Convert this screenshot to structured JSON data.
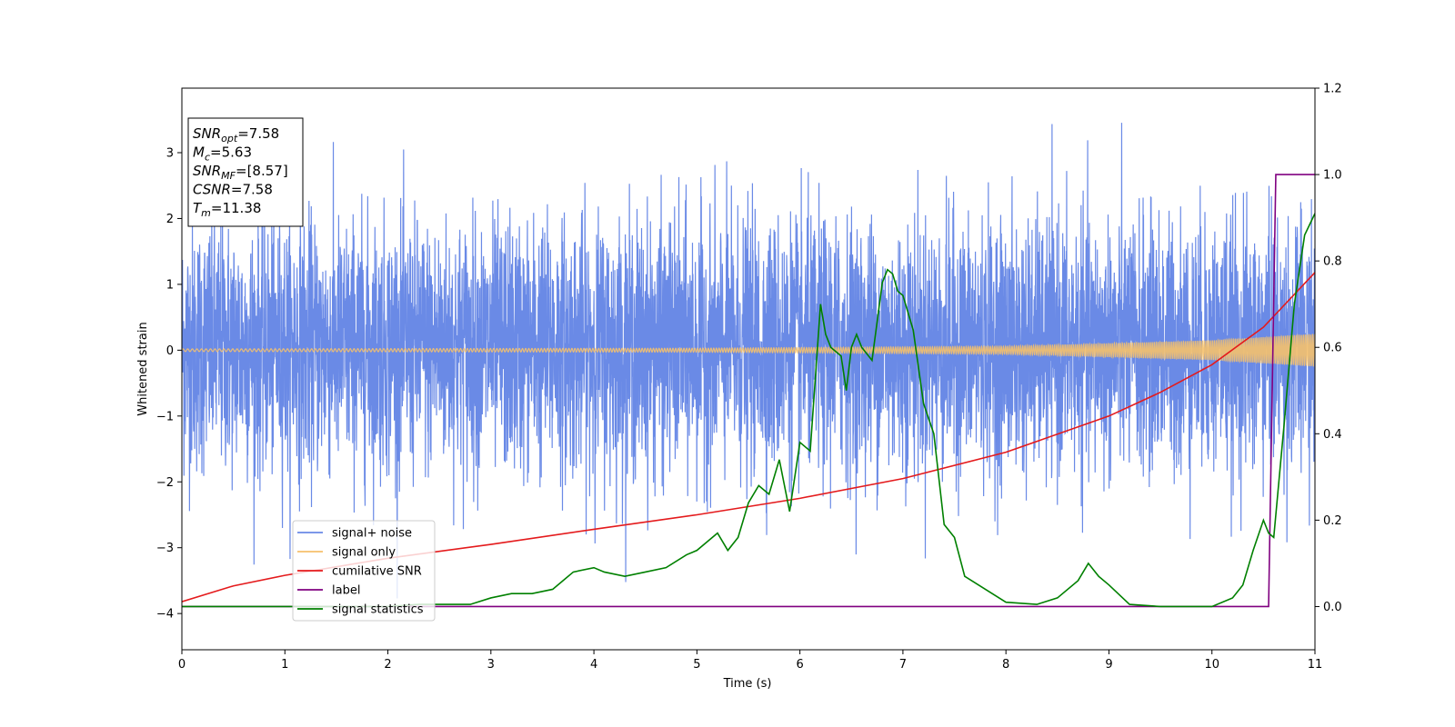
{
  "chart_data": {
    "type": "line",
    "xlabel": "Time (s)",
    "ylabel": "Whitened strain",
    "xlim": [
      0,
      11
    ],
    "ylim": [
      -4.55,
      3.98
    ],
    "y2lim": [
      -0.1,
      1.2
    ],
    "xticks": [
      0,
      1,
      2,
      3,
      4,
      5,
      6,
      7,
      8,
      9,
      10,
      11
    ],
    "yticks": [
      -4,
      -3,
      -2,
      -1,
      0,
      1,
      2,
      3
    ],
    "y2ticks": [
      0.0,
      0.2,
      0.4,
      0.6,
      0.8,
      1.0,
      1.2
    ],
    "grid": false,
    "legend_position": "lower-left",
    "annotation": {
      "lines": [
        {
          "var": "SNR",
          "sub": "opt",
          "value": "=7.58"
        },
        {
          "var": "M",
          "sub": "c",
          "value": "=5.63"
        },
        {
          "var": "SNR",
          "sub": "MF",
          "value": "=[8.57]"
        },
        {
          "var": "CSNR",
          "sub": "",
          "value": "=7.58"
        },
        {
          "var": "T",
          "sub": "m",
          "value": "=11.38"
        }
      ]
    },
    "series": [
      {
        "name": "signal+ noise",
        "color": "#6a8ae6",
        "axis": "left",
        "style": "noise",
        "envelope": {
          "x": [
            0,
            11
          ],
          "typical_range": [
            -1.5,
            2.0
          ],
          "peaks_max": 3.6,
          "peaks_min": -4.15
        }
      },
      {
        "name": "signal only",
        "color": "#f6c16b",
        "axis": "left",
        "style": "chirp",
        "amplitude": {
          "x": [
            0,
            5,
            8,
            10,
            11
          ],
          "y": [
            0.02,
            0.03,
            0.06,
            0.15,
            0.25
          ]
        }
      },
      {
        "name": "cumilative SNR",
        "color": "#e41a1c",
        "axis": "left",
        "x": [
          0.0,
          0.5,
          1.0,
          2.0,
          3.0,
          4.0,
          5.0,
          6.0,
          7.0,
          8.0,
          9.0,
          9.5,
          10.0,
          10.5,
          11.0
        ],
        "y": [
          -3.82,
          -3.58,
          -3.42,
          -3.16,
          -2.95,
          -2.72,
          -2.5,
          -2.25,
          -1.95,
          -1.55,
          -1.0,
          -0.64,
          -0.22,
          0.35,
          1.18
        ]
      },
      {
        "name": "label",
        "color": "#800080",
        "axis": "right",
        "x": [
          0,
          10.55,
          10.62,
          11.0
        ],
        "y": [
          0,
          0,
          1,
          1
        ]
      },
      {
        "name": "signal statistics",
        "color": "#008000",
        "axis": "right",
        "x": [
          0,
          0.5,
          1.0,
          1.5,
          2.0,
          2.3,
          2.5,
          2.8,
          3.0,
          3.2,
          3.4,
          3.6,
          3.8,
          4.0,
          4.1,
          4.3,
          4.5,
          4.7,
          4.9,
          5.0,
          5.1,
          5.2,
          5.3,
          5.4,
          5.5,
          5.6,
          5.7,
          5.8,
          5.9,
          6.0,
          6.1,
          6.2,
          6.25,
          6.3,
          6.4,
          6.45,
          6.5,
          6.55,
          6.6,
          6.7,
          6.8,
          6.85,
          6.9,
          6.95,
          7.0,
          7.1,
          7.2,
          7.3,
          7.4,
          7.5,
          7.6,
          7.8,
          8.0,
          8.3,
          8.5,
          8.7,
          8.8,
          8.9,
          9.0,
          9.2,
          9.5,
          9.8,
          10.0,
          10.2,
          10.3,
          10.4,
          10.5,
          10.55,
          10.6,
          10.7,
          10.8,
          10.9,
          11.0
        ],
        "y": [
          0.0,
          0.0,
          0.0,
          0.0,
          0.0,
          0.005,
          0.005,
          0.005,
          0.02,
          0.03,
          0.03,
          0.04,
          0.08,
          0.09,
          0.08,
          0.07,
          0.08,
          0.09,
          0.12,
          0.13,
          0.15,
          0.17,
          0.13,
          0.16,
          0.24,
          0.28,
          0.26,
          0.34,
          0.22,
          0.38,
          0.36,
          0.7,
          0.63,
          0.6,
          0.58,
          0.5,
          0.6,
          0.63,
          0.6,
          0.57,
          0.75,
          0.78,
          0.77,
          0.73,
          0.72,
          0.64,
          0.47,
          0.4,
          0.19,
          0.16,
          0.07,
          0.04,
          0.01,
          0.005,
          0.02,
          0.06,
          0.1,
          0.07,
          0.05,
          0.005,
          0.0,
          0.0,
          0.0,
          0.02,
          0.05,
          0.13,
          0.2,
          0.17,
          0.16,
          0.42,
          0.7,
          0.86,
          0.91
        ]
      }
    ]
  }
}
